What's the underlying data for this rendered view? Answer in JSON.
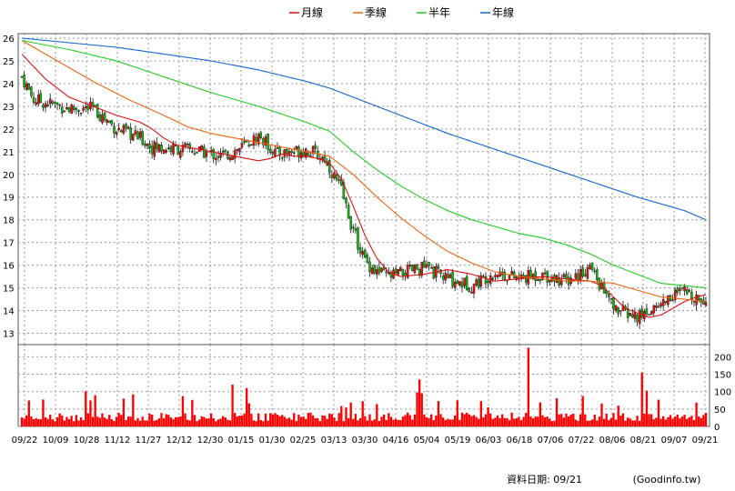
{
  "chart_data": {
    "type": "candlestick",
    "legend": [
      {
        "name": "月線",
        "color": "#dd1111"
      },
      {
        "name": "季線",
        "color": "#ee6611"
      },
      {
        "name": "半年",
        "color": "#22cc22"
      },
      {
        "name": "年線",
        "color": "#1166cc"
      }
    ],
    "price_axis": {
      "ticks": [
        13,
        14,
        15,
        16,
        17,
        18,
        19,
        20,
        21,
        22,
        23,
        24,
        25,
        26
      ],
      "ylim": [
        12.5,
        26.2
      ]
    },
    "volume_axis": {
      "ticks": [
        0,
        50,
        100,
        150,
        200
      ],
      "ylim": [
        0,
        235
      ]
    },
    "x_labels": [
      "09/22",
      "10/09",
      "10/28",
      "11/12",
      "11/27",
      "12/12",
      "12/30",
      "01/15",
      "01/30",
      "02/25",
      "03/13",
      "03/30",
      "04/16",
      "05/04",
      "05/19",
      "06/03",
      "06/18",
      "07/06",
      "07/22",
      "08/06",
      "08/21",
      "09/07",
      "09/21"
    ],
    "total_days": 290,
    "moving_averages": [
      {
        "name": "月線",
        "color": "#dd1111",
        "points": [
          [
            0,
            25.3
          ],
          [
            10,
            24.2
          ],
          [
            20,
            23.4
          ],
          [
            30,
            23.0
          ],
          [
            40,
            22.6
          ],
          [
            50,
            22.3
          ],
          [
            55,
            22.0
          ],
          [
            60,
            21.6
          ],
          [
            65,
            21.3
          ],
          [
            75,
            21.1
          ],
          [
            85,
            20.9
          ],
          [
            95,
            20.7
          ],
          [
            100,
            20.6
          ],
          [
            105,
            20.7
          ],
          [
            110,
            20.9
          ],
          [
            115,
            20.8
          ],
          [
            120,
            20.8
          ],
          [
            125,
            20.7
          ],
          [
            130,
            20.5
          ],
          [
            135,
            19.8
          ],
          [
            140,
            18.6
          ],
          [
            145,
            17.3
          ],
          [
            150,
            16.3
          ],
          [
            155,
            15.7
          ],
          [
            160,
            15.5
          ],
          [
            170,
            15.6
          ],
          [
            180,
            15.8
          ],
          [
            190,
            15.6
          ],
          [
            200,
            15.3
          ],
          [
            210,
            15.4
          ],
          [
            220,
            15.5
          ],
          [
            230,
            15.4
          ],
          [
            240,
            15.3
          ],
          [
            245,
            15.1
          ],
          [
            250,
            14.6
          ],
          [
            255,
            14.1
          ],
          [
            260,
            13.9
          ],
          [
            265,
            13.7
          ],
          [
            270,
            13.8
          ],
          [
            275,
            14.1
          ],
          [
            280,
            14.4
          ],
          [
            285,
            14.6
          ],
          [
            289,
            14.7
          ]
        ]
      },
      {
        "name": "季線",
        "color": "#ee6611",
        "points": [
          [
            0,
            25.9
          ],
          [
            15,
            25.0
          ],
          [
            30,
            24.1
          ],
          [
            45,
            23.3
          ],
          [
            60,
            22.6
          ],
          [
            70,
            22.1
          ],
          [
            80,
            21.8
          ],
          [
            90,
            21.6
          ],
          [
            100,
            21.4
          ],
          [
            110,
            21.2
          ],
          [
            120,
            21.0
          ],
          [
            130,
            20.8
          ],
          [
            140,
            20.0
          ],
          [
            150,
            19.0
          ],
          [
            160,
            18.1
          ],
          [
            170,
            17.3
          ],
          [
            180,
            16.6
          ],
          [
            190,
            16.1
          ],
          [
            200,
            15.7
          ],
          [
            210,
            15.5
          ],
          [
            220,
            15.4
          ],
          [
            230,
            15.3
          ],
          [
            240,
            15.3
          ],
          [
            250,
            15.2
          ],
          [
            260,
            14.9
          ],
          [
            270,
            14.6
          ],
          [
            280,
            14.5
          ],
          [
            289,
            14.4
          ]
        ]
      },
      {
        "name": "半年",
        "color": "#22cc22",
        "points": [
          [
            0,
            25.9
          ],
          [
            20,
            25.5
          ],
          [
            40,
            25.0
          ],
          [
            60,
            24.3
          ],
          [
            80,
            23.6
          ],
          [
            100,
            23.0
          ],
          [
            120,
            22.3
          ],
          [
            130,
            21.9
          ],
          [
            140,
            21.0
          ],
          [
            150,
            20.2
          ],
          [
            160,
            19.5
          ],
          [
            170,
            18.9
          ],
          [
            180,
            18.4
          ],
          [
            190,
            18.0
          ],
          [
            200,
            17.7
          ],
          [
            210,
            17.4
          ],
          [
            220,
            17.2
          ],
          [
            230,
            16.9
          ],
          [
            240,
            16.5
          ],
          [
            250,
            16.0
          ],
          [
            260,
            15.6
          ],
          [
            270,
            15.2
          ],
          [
            280,
            15.1
          ],
          [
            289,
            15.0
          ]
        ]
      },
      {
        "name": "年線",
        "color": "#1166cc",
        "points": [
          [
            0,
            26.0
          ],
          [
            20,
            25.8
          ],
          [
            40,
            25.6
          ],
          [
            60,
            25.3
          ],
          [
            80,
            25.0
          ],
          [
            100,
            24.6
          ],
          [
            120,
            24.1
          ],
          [
            130,
            23.8
          ],
          [
            140,
            23.4
          ],
          [
            160,
            22.6
          ],
          [
            180,
            21.8
          ],
          [
            200,
            21.1
          ],
          [
            220,
            20.4
          ],
          [
            240,
            19.7
          ],
          [
            260,
            19.0
          ],
          [
            280,
            18.4
          ],
          [
            289,
            18.0
          ]
        ]
      }
    ]
  },
  "footer": {
    "data_date": "資料日期: 09/21",
    "source": "(Goodinfo.tw)"
  }
}
